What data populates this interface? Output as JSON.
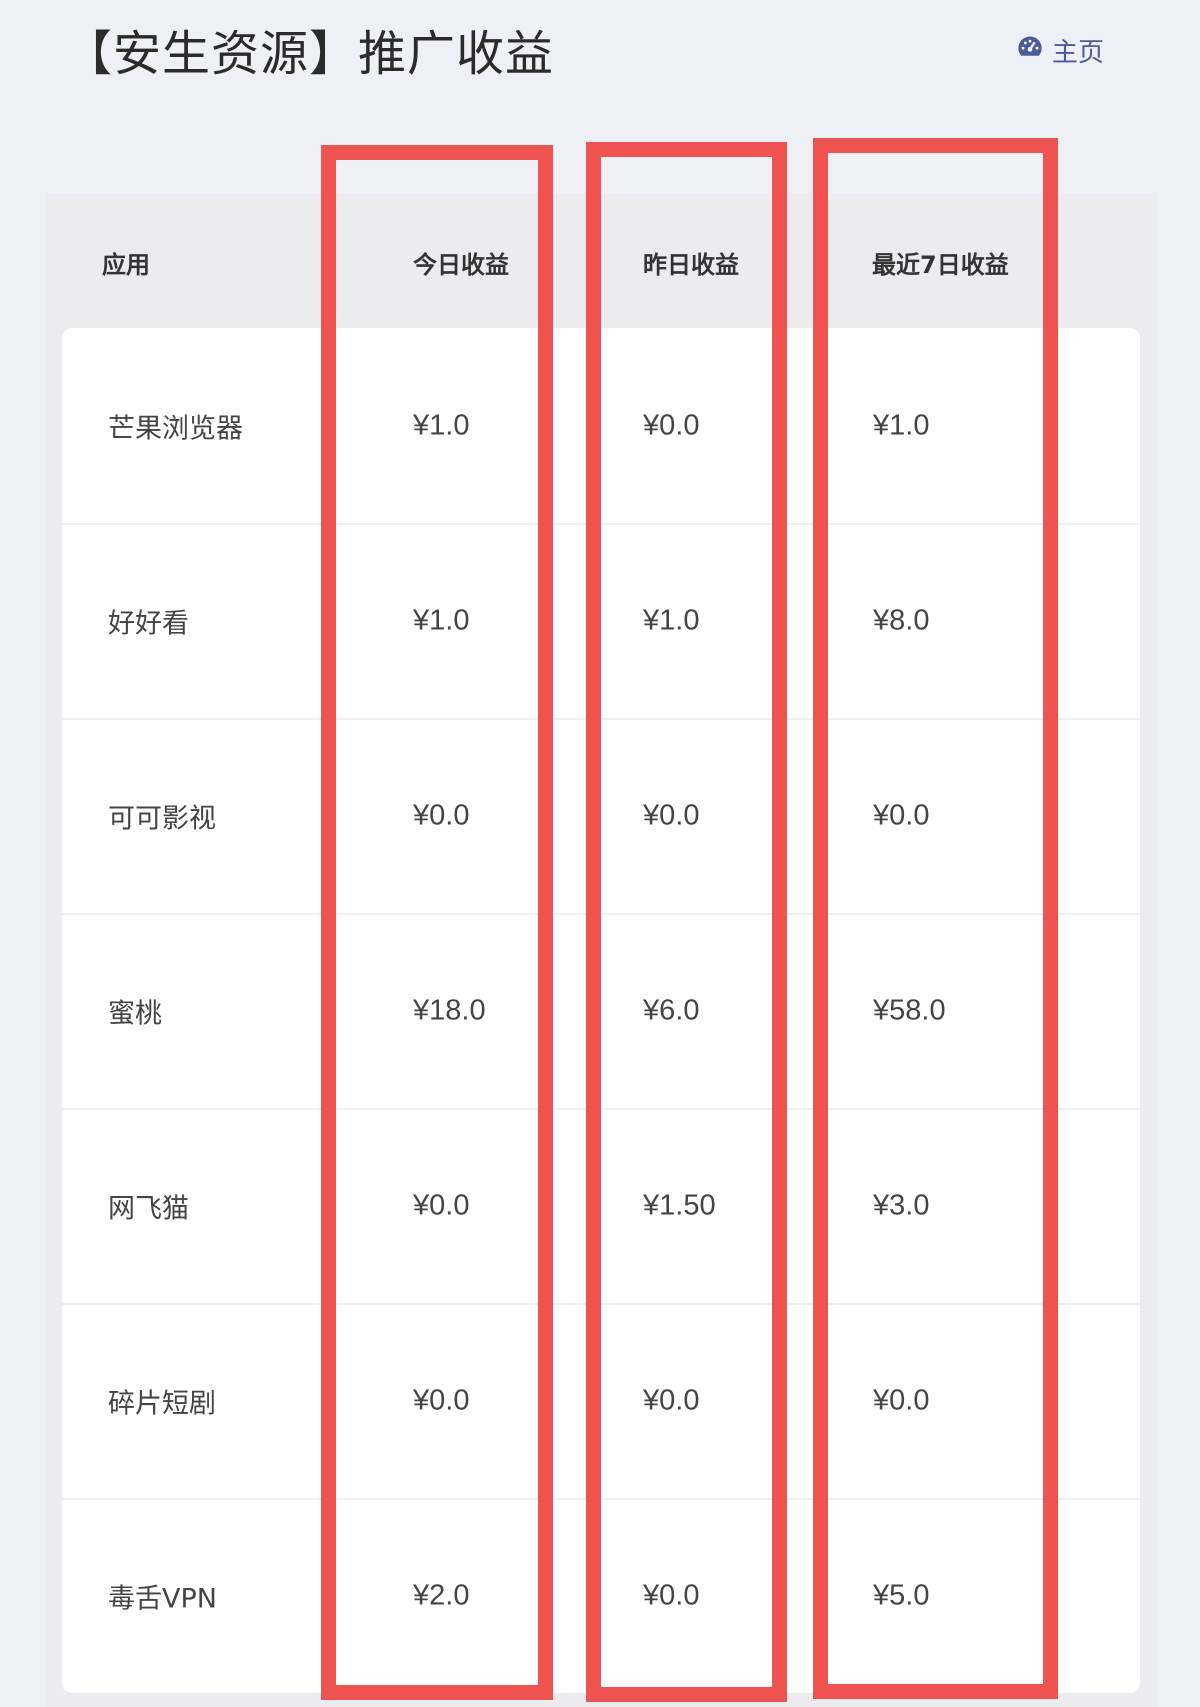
{
  "header": {
    "title": "【安生资源】推广收益",
    "home_label": "主页",
    "home_icon": "dashboard-icon"
  },
  "table": {
    "columns": [
      "应用",
      "今日收益",
      "昨日收益",
      "最近7日收益"
    ],
    "rows": [
      {
        "app": "芒果浏览器",
        "today": "¥1.0",
        "yesterday": "¥0.0",
        "last7": "¥1.0"
      },
      {
        "app": "好好看",
        "today": "¥1.0",
        "yesterday": "¥1.0",
        "last7": "¥8.0"
      },
      {
        "app": "可可影视",
        "today": "¥0.0",
        "yesterday": "¥0.0",
        "last7": "¥0.0"
      },
      {
        "app": "蜜桃",
        "today": "¥18.0",
        "yesterday": "¥6.0",
        "last7": "¥58.0"
      },
      {
        "app": "网飞猫",
        "today": "¥0.0",
        "yesterday": "¥1.50",
        "last7": "¥3.0"
      },
      {
        "app": "碎片短剧",
        "today": "¥0.0",
        "yesterday": "¥0.0",
        "last7": "¥0.0"
      },
      {
        "app": "毒舌VPN",
        "today": "¥2.0",
        "yesterday": "¥0.0",
        "last7": "¥5.0"
      }
    ]
  },
  "colors": {
    "highlight": "#ef534f",
    "link": "#4a5a9a",
    "background": "#eff0f5"
  }
}
